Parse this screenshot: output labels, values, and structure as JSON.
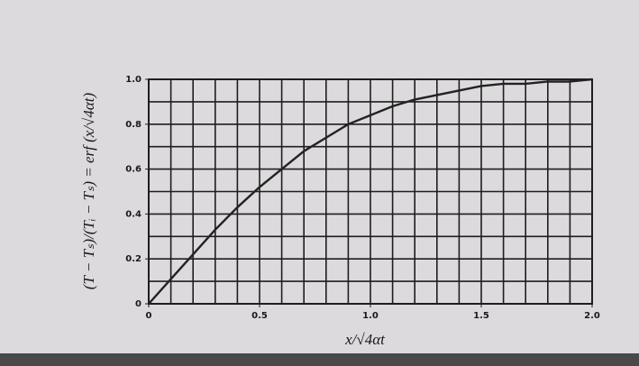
{
  "chart_data": {
    "type": "line",
    "x_label": "x/√4αt",
    "y_label": "(T − Tₛ)/(Tᵢ − Tₛ) = erf (x/√4αt)",
    "x": [
      0,
      0.1,
      0.2,
      0.3,
      0.4,
      0.5,
      0.6,
      0.7,
      0.8,
      0.9,
      1.0,
      1.1,
      1.2,
      1.3,
      1.4,
      1.5,
      1.6,
      1.7,
      1.8,
      1.9,
      2.0
    ],
    "values": [
      0,
      0.11,
      0.22,
      0.33,
      0.43,
      0.52,
      0.6,
      0.68,
      0.74,
      0.8,
      0.84,
      0.88,
      0.91,
      0.93,
      0.95,
      0.97,
      0.98,
      0.98,
      0.99,
      0.99,
      1.0
    ],
    "color": "#222222",
    "xlim": [
      0,
      2
    ],
    "ylim": [
      0,
      1
    ],
    "xticks": [
      0,
      0.5,
      {
        "value": 1,
        "label": "1.0"
      },
      1.5,
      {
        "value": 2,
        "label": "2.0"
      }
    ],
    "yticks": [
      0,
      0.2,
      0.4,
      0.6,
      0.8,
      {
        "value": 1,
        "label": "1.0"
      }
    ],
    "xgrid": [
      0.1,
      0.2,
      0.3,
      0.4,
      0.5,
      0.6,
      0.7,
      0.8,
      0.9,
      1.0,
      1.1,
      1.2,
      1.3,
      1.4,
      1.5,
      1.6,
      1.7,
      1.8,
      1.9,
      2.0
    ],
    "ygrid": [
      0.1,
      0.2,
      0.3,
      0.4,
      0.5,
      0.6,
      0.7,
      0.8,
      0.9,
      1.0
    ],
    "grid": true
  }
}
